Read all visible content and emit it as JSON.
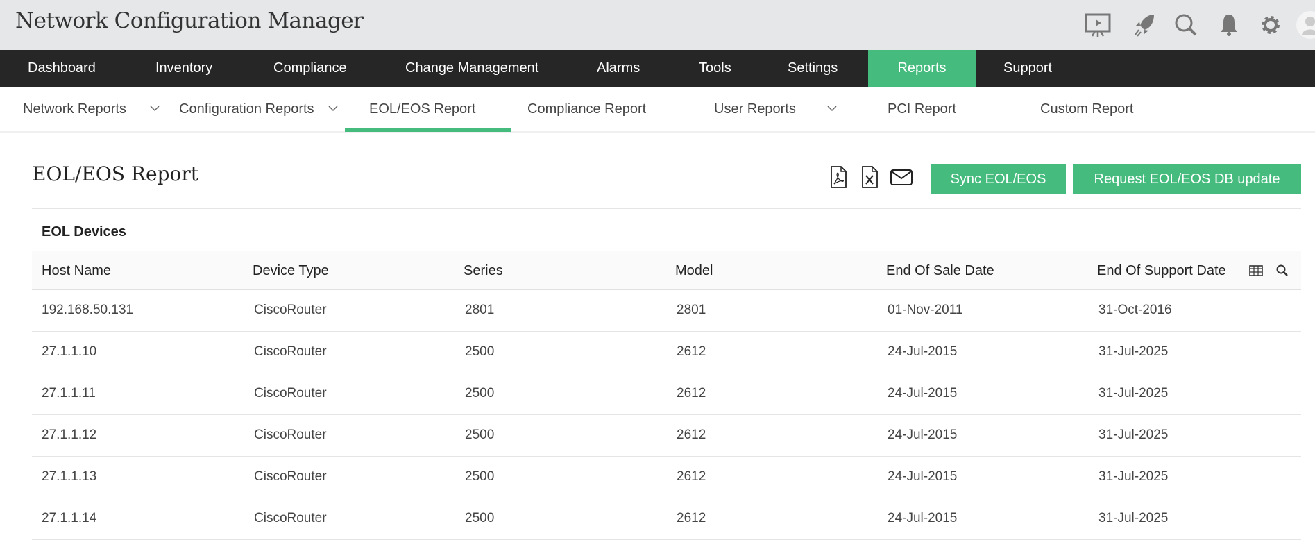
{
  "app": {
    "title": "Network Configuration Manager"
  },
  "header_icons": [
    "presentation-icon",
    "rocket-icon",
    "search-icon",
    "bell-icon",
    "gear-icon",
    "avatar-icon"
  ],
  "nav": {
    "items": [
      "Dashboard",
      "Inventory",
      "Compliance",
      "Change Management",
      "Alarms",
      "Tools",
      "Settings",
      "Reports",
      "Support"
    ],
    "active": "Reports"
  },
  "subnav": {
    "items": [
      {
        "label": "Network Reports",
        "dropdown": true
      },
      {
        "label": "Configuration Reports",
        "dropdown": true
      },
      {
        "label": "EOL/EOS Report",
        "dropdown": false,
        "active": true
      },
      {
        "label": "Compliance Report",
        "dropdown": false
      },
      {
        "label": "User Reports",
        "dropdown": true
      },
      {
        "label": "PCI Report",
        "dropdown": false
      },
      {
        "label": "Custom Report",
        "dropdown": false
      }
    ]
  },
  "page": {
    "title": "EOL/EOS Report",
    "actions": {
      "sync": "Sync EOL/EOS",
      "request": "Request EOL/EOS DB update"
    },
    "export_icons": [
      "pdf-icon",
      "excel-icon",
      "mail-icon"
    ]
  },
  "table": {
    "section_title": "EOL Devices",
    "columns": [
      "Host Name",
      "Device Type",
      "Series",
      "Model",
      "End Of Sale Date",
      "End Of Support Date"
    ],
    "rows": [
      [
        "192.168.50.131",
        "CiscoRouter",
        "2801",
        "2801",
        "01-Nov-2011",
        "31-Oct-2016"
      ],
      [
        "27.1.1.10",
        "CiscoRouter",
        "2500",
        "2612",
        "24-Jul-2015",
        "31-Jul-2025"
      ],
      [
        "27.1.1.11",
        "CiscoRouter",
        "2500",
        "2612",
        "24-Jul-2015",
        "31-Jul-2025"
      ],
      [
        "27.1.1.12",
        "CiscoRouter",
        "2500",
        "2612",
        "24-Jul-2015",
        "31-Jul-2025"
      ],
      [
        "27.1.1.13",
        "CiscoRouter",
        "2500",
        "2612",
        "24-Jul-2015",
        "31-Jul-2025"
      ],
      [
        "27.1.1.14",
        "CiscoRouter",
        "2500",
        "2612",
        "24-Jul-2015",
        "31-Jul-2025"
      ]
    ]
  },
  "colors": {
    "accent": "#45bb7e",
    "nav_bg": "#262626",
    "topbar_bg": "#e6e7e8"
  }
}
